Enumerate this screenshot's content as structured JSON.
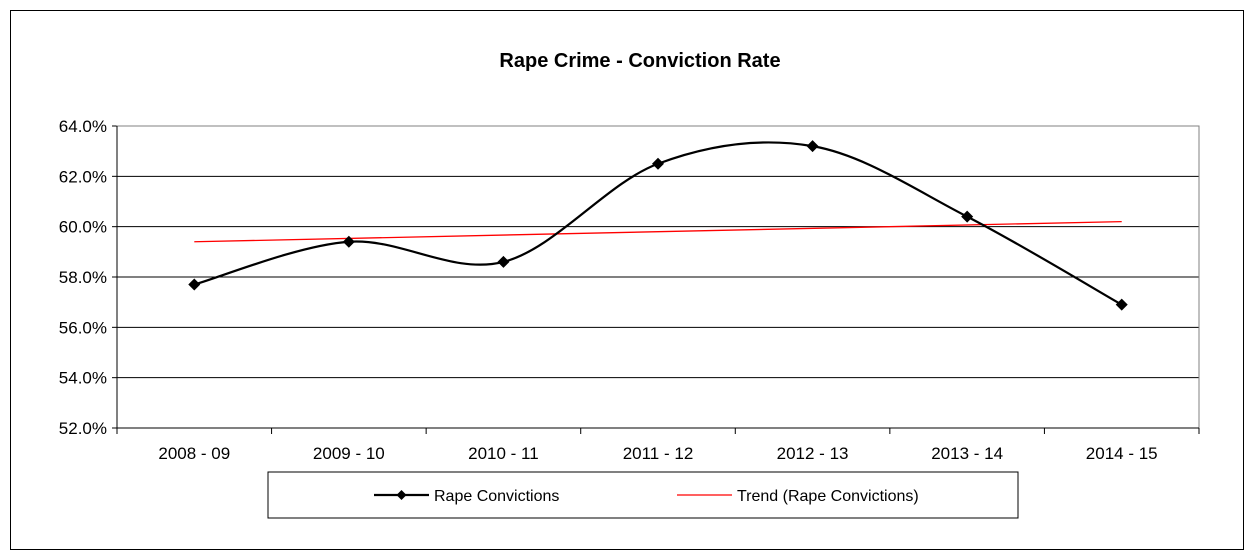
{
  "chart_data": {
    "type": "line",
    "title": "Rape Crime - Conviction Rate",
    "categories": [
      "2008 - 09",
      "2009 - 10",
      "2010 - 11",
      "2011 - 12",
      "2012 - 13",
      "2013 - 14",
      "2014 - 15"
    ],
    "series": [
      {
        "name": "Rape Convictions",
        "values": [
          57.7,
          59.4,
          58.6,
          62.5,
          63.2,
          60.4,
          56.9
        ],
        "color": "#000000",
        "marker": "diamond",
        "smooth": true
      },
      {
        "name": "Trend (Rape Convictions)",
        "values": [
          59.4,
          59.5,
          59.7,
          59.8,
          59.9,
          60.1,
          60.2
        ],
        "color": "#ff0000",
        "marker": "none",
        "smooth": false
      }
    ],
    "y_ticks": [
      "52.0%",
      "54.0%",
      "56.0%",
      "58.0%",
      "60.0%",
      "62.0%",
      "64.0%"
    ],
    "ylim": [
      52,
      64
    ],
    "y_step": 2,
    "grid": true,
    "legend": "bottom",
    "xlabel": "",
    "ylabel": ""
  }
}
